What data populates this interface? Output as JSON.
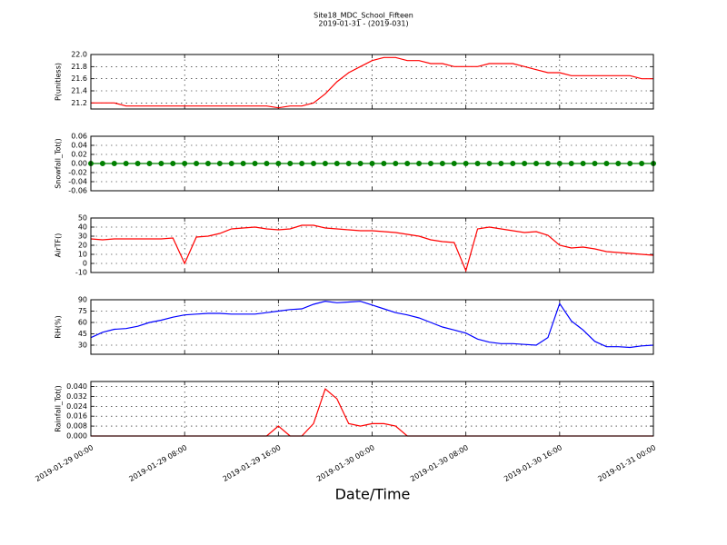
{
  "chart_data": [
    {
      "type": "line",
      "title": "Site18_MDC_School_Fifteen",
      "subtitle": "2019-01-31 - (2019-031)",
      "ylabel": "P(unitless)",
      "color": "#ff0000",
      "grid": true,
      "xlim": [
        "2019-01-29 00:00",
        "2019-01-31 00:00"
      ],
      "x": [
        "2019-01-29 00:00",
        "2019-01-29 01:00",
        "2019-01-29 02:00",
        "2019-01-29 03:00",
        "2019-01-29 04:00",
        "2019-01-29 05:00",
        "2019-01-29 06:00",
        "2019-01-29 07:00",
        "2019-01-29 08:00",
        "2019-01-29 09:00",
        "2019-01-29 10:00",
        "2019-01-29 11:00",
        "2019-01-29 12:00",
        "2019-01-29 13:00",
        "2019-01-29 14:00",
        "2019-01-29 15:00",
        "2019-01-29 16:00",
        "2019-01-29 17:00",
        "2019-01-29 18:00",
        "2019-01-29 19:00",
        "2019-01-29 20:00",
        "2019-01-29 21:00",
        "2019-01-29 22:00",
        "2019-01-29 23:00",
        "2019-01-30 00:00",
        "2019-01-30 01:00",
        "2019-01-30 02:00",
        "2019-01-30 03:00",
        "2019-01-30 04:00",
        "2019-01-30 05:00",
        "2019-01-30 06:00",
        "2019-01-30 07:00",
        "2019-01-30 08:00",
        "2019-01-30 09:00",
        "2019-01-30 10:00",
        "2019-01-30 11:00",
        "2019-01-30 12:00",
        "2019-01-30 13:00",
        "2019-01-30 14:00",
        "2019-01-30 15:00",
        "2019-01-30 16:00",
        "2019-01-30 17:00",
        "2019-01-30 18:00",
        "2019-01-30 19:00",
        "2019-01-30 20:00",
        "2019-01-30 21:00",
        "2019-01-30 22:00",
        "2019-01-30 23:00",
        "2019-01-31 00:00"
      ],
      "values": [
        21.2,
        21.2,
        21.2,
        21.15,
        21.15,
        21.15,
        21.15,
        21.15,
        21.15,
        21.15,
        21.15,
        21.15,
        21.15,
        21.15,
        21.15,
        21.15,
        21.12,
        21.15,
        21.15,
        21.2,
        21.35,
        21.55,
        21.7,
        21.8,
        21.9,
        21.95,
        21.95,
        21.9,
        21.9,
        21.85,
        21.85,
        21.8,
        21.8,
        21.8,
        21.85,
        21.85,
        21.85,
        21.8,
        21.75,
        21.7,
        21.7,
        21.65,
        21.65,
        21.65,
        21.65,
        21.65,
        21.65,
        21.6,
        21.6
      ],
      "ylim": [
        21.1,
        22.0
      ],
      "yticks": [
        21.2,
        21.4,
        21.6,
        21.8,
        {
          "value": 22.0,
          "label": "22.0"
        }
      ]
    },
    {
      "type": "line",
      "ylabel": "Snowfall_Tot()",
      "color": "#008000",
      "markers": true,
      "grid": true,
      "xlim": [
        "2019-01-29 00:00",
        "2019-01-31 00:00"
      ],
      "x": [
        "2019-01-29 00:00",
        "2019-01-29 01:00",
        "2019-01-29 02:00",
        "2019-01-29 03:00",
        "2019-01-29 04:00",
        "2019-01-29 05:00",
        "2019-01-29 06:00",
        "2019-01-29 07:00",
        "2019-01-29 08:00",
        "2019-01-29 09:00",
        "2019-01-29 10:00",
        "2019-01-29 11:00",
        "2019-01-29 12:00",
        "2019-01-29 13:00",
        "2019-01-29 14:00",
        "2019-01-29 15:00",
        "2019-01-29 16:00",
        "2019-01-29 17:00",
        "2019-01-29 18:00",
        "2019-01-29 19:00",
        "2019-01-29 20:00",
        "2019-01-29 21:00",
        "2019-01-29 22:00",
        "2019-01-29 23:00",
        "2019-01-30 00:00",
        "2019-01-30 01:00",
        "2019-01-30 02:00",
        "2019-01-30 03:00",
        "2019-01-30 04:00",
        "2019-01-30 05:00",
        "2019-01-30 06:00",
        "2019-01-30 07:00",
        "2019-01-30 08:00",
        "2019-01-30 09:00",
        "2019-01-30 10:00",
        "2019-01-30 11:00",
        "2019-01-30 12:00",
        "2019-01-30 13:00",
        "2019-01-30 14:00",
        "2019-01-30 15:00",
        "2019-01-30 16:00",
        "2019-01-30 17:00",
        "2019-01-30 18:00",
        "2019-01-30 19:00",
        "2019-01-30 20:00",
        "2019-01-30 21:00",
        "2019-01-30 22:00",
        "2019-01-30 23:00",
        "2019-01-31 00:00"
      ],
      "values": [
        0,
        0,
        0,
        0,
        0,
        0,
        0,
        0,
        0,
        0,
        0,
        0,
        0,
        0,
        0,
        0,
        0,
        0,
        0,
        0,
        0,
        0,
        0,
        0,
        0,
        0,
        0,
        0,
        0,
        0,
        0,
        0,
        0,
        0,
        0,
        0,
        0,
        0,
        0,
        0,
        0,
        0,
        0,
        0,
        0,
        0,
        0,
        0,
        0
      ],
      "ylim": [
        -0.06,
        0.06
      ],
      "yticks": [
        -0.06,
        -0.04,
        -0.02,
        {
          "value": 0,
          "label": "0.00"
        },
        0.02,
        0.04,
        0.06
      ]
    },
    {
      "type": "line",
      "ylabel": "AirTF()",
      "color": "#ff0000",
      "grid": true,
      "xlim": [
        "2019-01-29 00:00",
        "2019-01-31 00:00"
      ],
      "x": [
        "2019-01-29 00:00",
        "2019-01-29 01:00",
        "2019-01-29 02:00",
        "2019-01-29 03:00",
        "2019-01-29 04:00",
        "2019-01-29 05:00",
        "2019-01-29 06:00",
        "2019-01-29 07:00",
        "2019-01-29 08:00",
        "2019-01-29 09:00",
        "2019-01-29 10:00",
        "2019-01-29 11:00",
        "2019-01-29 12:00",
        "2019-01-29 13:00",
        "2019-01-29 14:00",
        "2019-01-29 15:00",
        "2019-01-29 16:00",
        "2019-01-29 17:00",
        "2019-01-29 18:00",
        "2019-01-29 19:00",
        "2019-01-29 20:00",
        "2019-01-29 21:00",
        "2019-01-29 22:00",
        "2019-01-29 23:00",
        "2019-01-30 00:00",
        "2019-01-30 01:00",
        "2019-01-30 02:00",
        "2019-01-30 03:00",
        "2019-01-30 04:00",
        "2019-01-30 05:00",
        "2019-01-30 06:00",
        "2019-01-30 07:00",
        "2019-01-30 08:00",
        "2019-01-30 09:00",
        "2019-01-30 10:00",
        "2019-01-30 11:00",
        "2019-01-30 12:00",
        "2019-01-30 13:00",
        "2019-01-30 14:00",
        "2019-01-30 15:00",
        "2019-01-30 16:00",
        "2019-01-30 17:00",
        "2019-01-30 18:00",
        "2019-01-30 19:00",
        "2019-01-30 20:00",
        "2019-01-30 21:00",
        "2019-01-30 22:00",
        "2019-01-30 23:00",
        "2019-01-31 00:00"
      ],
      "values": [
        27,
        26,
        27,
        27,
        27,
        27,
        27,
        28,
        0,
        29,
        30,
        33,
        38,
        39,
        40,
        38,
        37,
        38,
        42,
        42,
        39,
        38,
        37,
        36,
        36,
        35,
        34,
        32,
        30,
        26,
        24,
        23,
        -8,
        38,
        40,
        38,
        36,
        34,
        35,
        31,
        20,
        17,
        18,
        16,
        13,
        12,
        11,
        10,
        9
      ],
      "ylim": [
        -10,
        50
      ],
      "yticks": [
        -10,
        0,
        10,
        20,
        30,
        40,
        50
      ]
    },
    {
      "type": "line",
      "ylabel": "RH(%)",
      "color": "#0000ff",
      "grid": true,
      "xlim": [
        "2019-01-29 00:00",
        "2019-01-31 00:00"
      ],
      "x": [
        "2019-01-29 00:00",
        "2019-01-29 01:00",
        "2019-01-29 02:00",
        "2019-01-29 03:00",
        "2019-01-29 04:00",
        "2019-01-29 05:00",
        "2019-01-29 06:00",
        "2019-01-29 07:00",
        "2019-01-29 08:00",
        "2019-01-29 09:00",
        "2019-01-29 10:00",
        "2019-01-29 11:00",
        "2019-01-29 12:00",
        "2019-01-29 13:00",
        "2019-01-29 14:00",
        "2019-01-29 15:00",
        "2019-01-29 16:00",
        "2019-01-29 17:00",
        "2019-01-29 18:00",
        "2019-01-29 19:00",
        "2019-01-29 20:00",
        "2019-01-29 21:00",
        "2019-01-29 22:00",
        "2019-01-29 23:00",
        "2019-01-30 00:00",
        "2019-01-30 01:00",
        "2019-01-30 02:00",
        "2019-01-30 03:00",
        "2019-01-30 04:00",
        "2019-01-30 05:00",
        "2019-01-30 06:00",
        "2019-01-30 07:00",
        "2019-01-30 08:00",
        "2019-01-30 09:00",
        "2019-01-30 10:00",
        "2019-01-30 11:00",
        "2019-01-30 12:00",
        "2019-01-30 13:00",
        "2019-01-30 14:00",
        "2019-01-30 15:00",
        "2019-01-30 16:00",
        "2019-01-30 17:00",
        "2019-01-30 18:00",
        "2019-01-30 19:00",
        "2019-01-30 20:00",
        "2019-01-30 21:00",
        "2019-01-30 22:00",
        "2019-01-30 23:00",
        "2019-01-31 00:00"
      ],
      "values": [
        40,
        47,
        51,
        52,
        55,
        60,
        63,
        67,
        70,
        71,
        72,
        72,
        71,
        71,
        71,
        73,
        75,
        77,
        78,
        84,
        88,
        86,
        87,
        88,
        83,
        78,
        73,
        70,
        66,
        60,
        54,
        50,
        46,
        38,
        34,
        32,
        32,
        31,
        30,
        40,
        85,
        62,
        50,
        35,
        28,
        28,
        27,
        29,
        30
      ],
      "ylim": [
        18,
        90
      ],
      "yticks": [
        30,
        45,
        60,
        75,
        90
      ]
    },
    {
      "type": "line",
      "ylabel": "Rainfall_Tot()",
      "xlabel": "Date/Time",
      "color": "#ff0000",
      "grid": true,
      "xlim": [
        "2019-01-29 00:00",
        "2019-01-31 00:00"
      ],
      "xticks": [
        "2019-01-29 00:00",
        "2019-01-29 08:00",
        "2019-01-29 16:00",
        "2019-01-30 00:00",
        "2019-01-30 08:00",
        "2019-01-30 16:00",
        "2019-01-31 00:00"
      ],
      "x": [
        "2019-01-29 00:00",
        "2019-01-29 01:00",
        "2019-01-29 02:00",
        "2019-01-29 03:00",
        "2019-01-29 04:00",
        "2019-01-29 05:00",
        "2019-01-29 06:00",
        "2019-01-29 07:00",
        "2019-01-29 08:00",
        "2019-01-29 09:00",
        "2019-01-29 10:00",
        "2019-01-29 11:00",
        "2019-01-29 12:00",
        "2019-01-29 13:00",
        "2019-01-29 14:00",
        "2019-01-29 15:00",
        "2019-01-29 16:00",
        "2019-01-29 17:00",
        "2019-01-29 18:00",
        "2019-01-29 19:00",
        "2019-01-29 20:00",
        "2019-01-29 21:00",
        "2019-01-29 22:00",
        "2019-01-29 23:00",
        "2019-01-30 00:00",
        "2019-01-30 01:00",
        "2019-01-30 02:00",
        "2019-01-30 03:00",
        "2019-01-30 04:00",
        "2019-01-30 05:00",
        "2019-01-30 06:00",
        "2019-01-30 07:00",
        "2019-01-30 08:00",
        "2019-01-30 09:00",
        "2019-01-30 10:00",
        "2019-01-30 11:00",
        "2019-01-30 12:00",
        "2019-01-30 13:00",
        "2019-01-30 14:00",
        "2019-01-30 15:00",
        "2019-01-30 16:00",
        "2019-01-30 17:00",
        "2019-01-30 18:00",
        "2019-01-30 19:00",
        "2019-01-30 20:00",
        "2019-01-30 21:00",
        "2019-01-30 22:00",
        "2019-01-30 23:00",
        "2019-01-31 00:00"
      ],
      "values": [
        0,
        0,
        0,
        0,
        0,
        0,
        0,
        0,
        0,
        0,
        0,
        0,
        0,
        0,
        0,
        0,
        0.008,
        0,
        0,
        0.01,
        0.038,
        0.03,
        0.01,
        0.008,
        0.01,
        0.01,
        0.008,
        0,
        0,
        0,
        0,
        0,
        0,
        0,
        0,
        0,
        0,
        0,
        0,
        0,
        0,
        0,
        0,
        0,
        0,
        0,
        0,
        0,
        0
      ],
      "ylim": [
        0,
        0.044
      ],
      "yticks": [
        {
          "value": 0,
          "label": "0.000"
        },
        0.008,
        0.016,
        0.024,
        0.032,
        {
          "value": 0.04,
          "label": "0.040"
        }
      ]
    }
  ]
}
